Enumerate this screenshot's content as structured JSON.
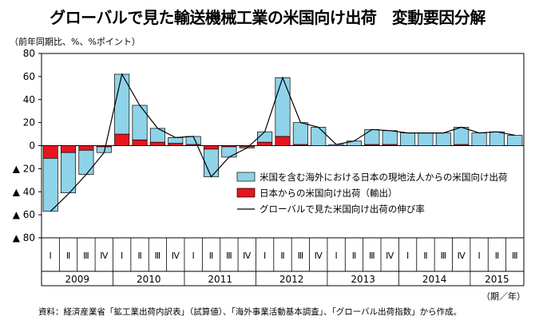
{
  "chart_data": {
    "type": "bar",
    "title": "グローバルで見た輸送機械工業の米国向け出荷　変動要因分解",
    "ylabel": "（前年同期比、%、%ポイント）",
    "period_unit": "（期／年）",
    "source": "資料：経済産業省「鉱工業出荷内訳表」（試算値）、「海外事業活動基本調査」、「グローバル出荷指数」から作成。",
    "ylim": [
      -80,
      80
    ],
    "yticks": [
      80,
      60,
      40,
      20,
      0,
      -20,
      -40,
      -60,
      -80
    ],
    "ytick_labels": [
      "80",
      "60",
      "40",
      "20",
      "0",
      "▲ 20",
      "▲ 40",
      "▲ 60",
      "▲ 80"
    ],
    "grid": false,
    "legend_position": "right-middle",
    "categories": [
      "Ⅰ",
      "Ⅱ",
      "Ⅲ",
      "Ⅳ",
      "Ⅰ",
      "Ⅱ",
      "Ⅲ",
      "Ⅳ",
      "Ⅰ",
      "Ⅱ",
      "Ⅲ",
      "Ⅳ",
      "Ⅰ",
      "Ⅱ",
      "Ⅲ",
      "Ⅳ",
      "Ⅰ",
      "Ⅱ",
      "Ⅲ",
      "Ⅳ",
      "Ⅰ",
      "Ⅱ",
      "Ⅲ",
      "Ⅳ",
      "Ⅰ",
      "Ⅱ",
      "Ⅲ"
    ],
    "years": [
      {
        "label": "2009",
        "quarters": 4
      },
      {
        "label": "2010",
        "quarters": 4
      },
      {
        "label": "2011",
        "quarters": 4
      },
      {
        "label": "2012",
        "quarters": 4
      },
      {
        "label": "2013",
        "quarters": 4
      },
      {
        "label": "2014",
        "quarters": 4
      },
      {
        "label": "2015",
        "quarters": 3
      }
    ],
    "series": [
      {
        "name": "米国を含む海外における日本の現地法人からの米国向け出荷",
        "kind": "bar",
        "color": "#8fd3e8",
        "values": [
          -46,
          -35,
          -21,
          -5,
          52,
          30,
          12,
          5,
          7,
          -24,
          -9,
          -1,
          9,
          51,
          19,
          16,
          1,
          4,
          13,
          12,
          11,
          11,
          11,
          15,
          11,
          12,
          9
        ]
      },
      {
        "name": "日本からの米国向け出荷（輸出）",
        "kind": "bar",
        "color": "#e8141e",
        "values": [
          -11,
          -6,
          -4,
          -1,
          10,
          5,
          3,
          2,
          1,
          -3,
          -1,
          -1,
          3,
          8,
          1,
          0,
          0,
          0,
          1,
          1,
          0,
          0,
          0,
          1,
          0,
          0,
          0
        ]
      },
      {
        "name": "グローバルで見た米国向け出荷の伸び率",
        "kind": "line",
        "color": "#000000",
        "values": [
          -57,
          -42,
          -25,
          -6,
          62,
          35,
          15,
          7,
          8,
          -27,
          -10,
          -2,
          12,
          59,
          20,
          16,
          1,
          4,
          14,
          13,
          11,
          11,
          11,
          16,
          11,
          12,
          9
        ]
      }
    ]
  }
}
